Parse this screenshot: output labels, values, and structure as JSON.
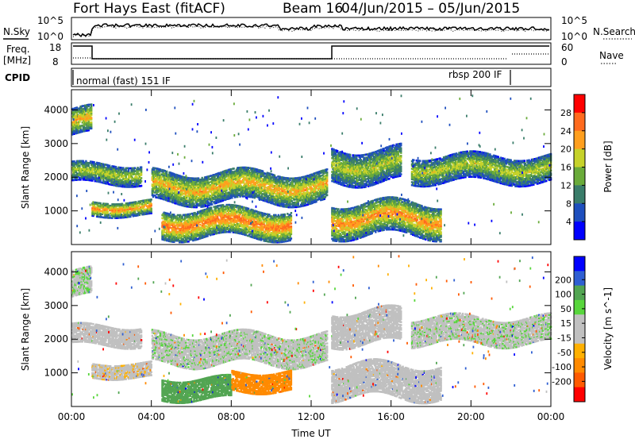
{
  "title": {
    "station": "Fort Hays East (fitACF)",
    "beam": "Beam 16",
    "dates": "04/Jun/2015 – 05/Jun/2015"
  },
  "panels": {
    "nsky": {
      "label": "N.Sky",
      "right_label": "N.Search",
      "ticks": [
        "10^5",
        "10^0"
      ],
      "right_ticks": [
        "10^5",
        "10^0"
      ]
    },
    "freq": {
      "label_line1": "Freq.",
      "label_line2": "[MHz]",
      "ticks": [
        "18",
        "8"
      ],
      "right_label": "Nave",
      "right_ticks": [
        "60",
        "0"
      ]
    },
    "cpid": {
      "label": "CPID",
      "programs": [
        {
          "name": "normal (fast) 151 IF",
          "start_hour": 0.0
        },
        {
          "name": "rbsp 200 IF",
          "start_hour": 22.0
        }
      ]
    }
  },
  "colors": {
    "power_scale": [
      "#0000ff",
      "#1e4fbe",
      "#3a7d6a",
      "#6aab3a",
      "#c6d22a",
      "#ff9f1e",
      "#ff6a1e",
      "#ff0000"
    ],
    "velocity_scale": [
      "#0000ff",
      "#2f5fd2",
      "#52a552",
      "#58d63c",
      "#c0c0c0",
      "#c0c0c0",
      "#ffb000",
      "#ff8a00",
      "#ff5a00",
      "#ff0000"
    ]
  },
  "chart_data": [
    {
      "type": "heatmap",
      "name": "power",
      "xlabel": "Time UT",
      "ylabel": "Slant Range [km]",
      "xlim": [
        0,
        24
      ],
      "ylim": [
        0,
        4600
      ],
      "xticks": [
        "00:00",
        "04:00",
        "08:00",
        "12:00",
        "16:00",
        "20:00",
        "00:00"
      ],
      "yticks": [
        1000,
        2000,
        3000,
        4000
      ],
      "colorbar": {
        "label": "Power [dB]",
        "ticks": [
          4,
          8,
          12,
          16,
          20,
          24,
          28
        ],
        "range": [
          0,
          32
        ]
      },
      "echo_regions": [
        {
          "t0": 0.0,
          "t1": 1.0,
          "r0": 3300,
          "r1": 4100,
          "peak_db": 22
        },
        {
          "t0": 0.0,
          "t1": 3.5,
          "r0": 1850,
          "r1": 2450,
          "peak_db": 18
        },
        {
          "t0": 1.0,
          "t1": 4.0,
          "r0": 900,
          "r1": 1350,
          "peak_db": 24
        },
        {
          "t0": 4.0,
          "t1": 12.8,
          "r0": 1300,
          "r1": 2200,
          "peak_db": 22
        },
        {
          "t0": 4.5,
          "t1": 11.0,
          "r0": 250,
          "r1": 1100,
          "peak_db": 26
        },
        {
          "t0": 13.0,
          "t1": 16.5,
          "r0": 1900,
          "r1": 2900,
          "peak_db": 18
        },
        {
          "t0": 13.0,
          "t1": 18.5,
          "r0": 300,
          "r1": 1300,
          "peak_db": 24
        },
        {
          "t0": 17.0,
          "t1": 24.0,
          "r0": 1900,
          "r1": 2700,
          "peak_db": 18
        }
      ]
    },
    {
      "type": "heatmap",
      "name": "velocity",
      "xlabel": "Time UT",
      "ylabel": "Slant Range [km]",
      "xlim": [
        0,
        24
      ],
      "ylim": [
        0,
        4600
      ],
      "xticks": [
        "00:00",
        "04:00",
        "08:00",
        "12:00",
        "16:00",
        "20:00",
        "00:00"
      ],
      "yticks": [
        1000,
        2000,
        3000,
        4000
      ],
      "colorbar": {
        "label": "Velocity [m s^-1]",
        "ticks": [
          200,
          100,
          50,
          15,
          -15,
          -50,
          -100,
          -200
        ]
      },
      "echo_regions": [
        {
          "t0": 0.0,
          "t1": 1.0,
          "r0": 3300,
          "r1": 4100,
          "velocity": 10
        },
        {
          "t0": 0.0,
          "t1": 3.5,
          "r0": 1850,
          "r1": 2450,
          "velocity": 0
        },
        {
          "t0": 1.0,
          "t1": 4.0,
          "r0": 900,
          "r1": 1350,
          "velocity": -5
        },
        {
          "t0": 4.0,
          "t1": 12.8,
          "r0": 1300,
          "r1": 2200,
          "velocity": 5
        },
        {
          "t0": 4.5,
          "t1": 8.0,
          "r0": 250,
          "r1": 900,
          "velocity": 80
        },
        {
          "t0": 8.0,
          "t1": 11.0,
          "r0": 500,
          "r1": 1100,
          "velocity": -70
        },
        {
          "t0": 13.0,
          "t1": 16.5,
          "r0": 1900,
          "r1": 2900,
          "velocity": 0
        },
        {
          "t0": 13.0,
          "t1": 18.5,
          "r0": 300,
          "r1": 1300,
          "velocity": 0
        },
        {
          "t0": 17.0,
          "t1": 24.0,
          "r0": 1900,
          "r1": 2700,
          "velocity": 5
        }
      ]
    }
  ]
}
